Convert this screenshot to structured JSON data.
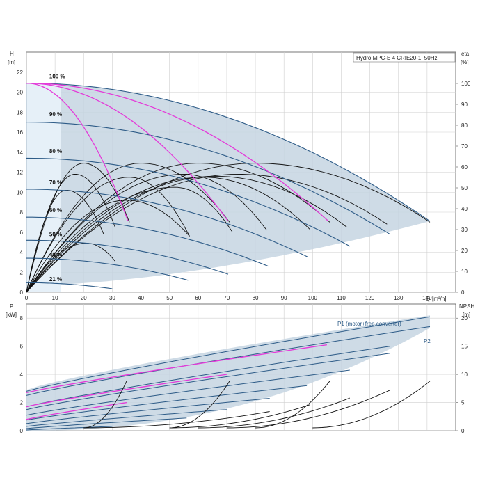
{
  "title": "Hydro MPC-E 4 CRIE20-1, 50Hz",
  "chart_data": [
    {
      "type": "line",
      "name": "head-efficiency",
      "y_axis_label": "H",
      "y_axis_unit": "[m]",
      "y2_axis_label": "eta",
      "y2_axis_unit": "[%]",
      "x_axis_label": "Q",
      "x_axis_unit": "[m³/h]",
      "xlim": [
        0,
        150
      ],
      "ylim": [
        0,
        24
      ],
      "y2lim": [
        0,
        115
      ],
      "x_ticks": [
        "0",
        "10",
        "20",
        "30",
        "40",
        "50",
        "60",
        "70",
        "80",
        "90",
        "100",
        "110",
        "120",
        "130",
        "140"
      ],
      "y_ticks": [
        "0",
        "2",
        "4",
        "6",
        "8",
        "10",
        "12",
        "14",
        "16",
        "18",
        "20",
        "22"
      ],
      "y2_ticks": [
        "0",
        "10",
        "20",
        "30",
        "40",
        "50",
        "60",
        "70",
        "80",
        "90",
        "100"
      ],
      "speed_labels": [
        {
          "label": "100 %",
          "h": 21.4
        },
        {
          "label": "90 %",
          "h": 17.6
        },
        {
          "label": "80 %",
          "h": 13.9
        },
        {
          "label": "70 %",
          "h": 10.8
        },
        {
          "label": "60 %",
          "h": 8.0
        },
        {
          "label": "50 %",
          "h": 5.6
        },
        {
          "label": "40 %",
          "h": 3.6
        },
        {
          "label": "21 %",
          "h": 1.1
        }
      ],
      "head_curves": [
        {
          "h0": 20.9,
          "q_max": 141,
          "h_end": 7.1
        },
        {
          "h0": 17.0,
          "q_max": 127,
          "h_end": 5.8
        },
        {
          "h0": 13.4,
          "q_max": 113,
          "h_end": 4.6
        },
        {
          "h0": 10.3,
          "q_max": 98.5,
          "h_end": 3.5
        },
        {
          "h0": 7.5,
          "q_max": 84.5,
          "h_end": 2.6
        },
        {
          "h0": 5.2,
          "q_max": 70.5,
          "h_end": 1.8
        },
        {
          "h0": 3.4,
          "q_max": 56.5,
          "h_end": 1.2
        },
        {
          "h0": 0.95,
          "q_max": 30,
          "h_end": 0.35
        }
      ],
      "magenta_curves": [
        {
          "h0": 20.9,
          "q_max": 35.5,
          "h_end": 7.1
        },
        {
          "h0": 20.9,
          "q_max": 70.5,
          "h_end": 7.1
        },
        {
          "h0": 20.9,
          "q_max": 105.5,
          "h_end": 7.1
        }
      ],
      "efficiency_curves": [
        {
          "peak_q": 20,
          "peak_h": 12.9,
          "q_end": 36,
          "h_end": 7.0
        },
        {
          "peak_q": 17,
          "peak_h": 11.8,
          "q_end": 31,
          "h_end": 6.5
        },
        {
          "peak_q": 14,
          "peak_h": 10.2,
          "q_end": 27,
          "h_end": 5.8
        },
        {
          "peak_q": 21,
          "peak_h": 4.9,
          "q_end": 31,
          "h_end": 3.1
        },
        {
          "peak_q": 40,
          "peak_h": 12.9,
          "q_end": 71,
          "h_end": 7.0
        },
        {
          "peak_q": 36,
          "peak_h": 11.5,
          "q_end": 57,
          "h_end": 5.6
        },
        {
          "peak_q": 35,
          "peak_h": 9.2,
          "q_end": 57,
          "h_end": 5.6
        },
        {
          "peak_q": 60,
          "peak_h": 12.9,
          "q_end": 106,
          "h_end": 7.0
        },
        {
          "peak_q": 55,
          "peak_h": 11.8,
          "q_end": 84,
          "h_end": 6.2
        },
        {
          "peak_q": 52,
          "peak_h": 10.5,
          "q_end": 72,
          "h_end": 6.0
        },
        {
          "peak_q": 80,
          "peak_h": 12.9,
          "q_end": 141,
          "h_end": 7.0
        },
        {
          "peak_q": 74,
          "peak_h": 11.8,
          "q_end": 126,
          "h_end": 6.8
        },
        {
          "peak_q": 66,
          "peak_h": 11.6,
          "q_end": 112,
          "h_end": 6.5
        },
        {
          "peak_q": 62,
          "peak_h": 11.5,
          "q_end": 99,
          "h_end": 6.3
        }
      ]
    },
    {
      "type": "line",
      "name": "power-npsh",
      "y_axis_label": "P",
      "y_axis_unit": "[kW]",
      "y2_axis_label": "NPSH",
      "y2_axis_unit": "[m]",
      "xlim": [
        0,
        150
      ],
      "ylim": [
        0,
        9
      ],
      "y2lim": [
        0,
        22.5
      ],
      "y_ticks": [
        "0",
        "2",
        "4",
        "6",
        "8"
      ],
      "y2_ticks": [
        "0",
        "5",
        "10",
        "15",
        "20"
      ],
      "series_labels": [
        "P1 (motor+freq.converter)",
        "P2"
      ],
      "envelope_upper": [
        [
          0,
          2.9
        ],
        [
          140,
          8.2
        ]
      ],
      "envelope_lower": [
        [
          0,
          0.0
        ],
        [
          140,
          7.3
        ]
      ],
      "power_curves": [
        {
          "q_max": 141,
          "p0": 2.8,
          "p_end": 8.1
        },
        {
          "q_max": 141,
          "p0": 2.5,
          "p_end": 7.4
        },
        {
          "q_max": 127,
          "p0": 1.7,
          "p_end": 6.0
        },
        {
          "q_max": 127,
          "p0": 1.5,
          "p_end": 5.5
        },
        {
          "q_max": 113,
          "p0": 1.1,
          "p_end": 4.3
        },
        {
          "q_max": 98,
          "p0": 0.75,
          "p_end": 3.2
        },
        {
          "q_max": 85,
          "p0": 0.5,
          "p_end": 2.3
        },
        {
          "q_max": 70,
          "p0": 0.3,
          "p_end": 1.5
        },
        {
          "q_max": 56,
          "p0": 0.15,
          "p_end": 0.9
        },
        {
          "q_max": 30,
          "p0": 0.05,
          "p_end": 0.3
        }
      ],
      "magenta_power": [
        {
          "q_max": 105,
          "p0": 2.7,
          "p_end": 6.1
        },
        {
          "q_max": 70,
          "p0": 1.7,
          "p_end": 4.0
        },
        {
          "q_max": 35,
          "p0": 0.8,
          "p_end": 2.0
        }
      ],
      "npsh_curves": [
        {
          "q_start": 20,
          "q_end": 35,
          "n_end": 8.8
        },
        {
          "q_start": 50,
          "q_end": 71,
          "n_end": 8.8
        },
        {
          "q_start": 80,
          "q_end": 106,
          "n_end": 8.8
        },
        {
          "q_start": 100,
          "q_end": 141,
          "n_end": 8.8
        },
        {
          "q_start": 70,
          "q_end": 127,
          "n_end": 7.2
        },
        {
          "q_start": 60,
          "q_end": 113,
          "n_end": 5.8
        },
        {
          "q_start": 50,
          "q_end": 99,
          "n_end": 4.6
        },
        {
          "q_start": 20,
          "q_end": 85,
          "n_end": 3.4
        }
      ]
    }
  ]
}
